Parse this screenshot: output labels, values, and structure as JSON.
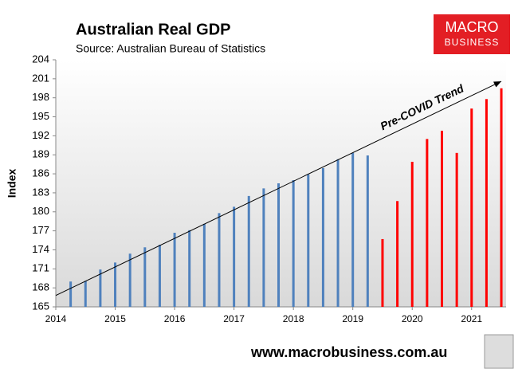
{
  "chart_data": {
    "type": "bar",
    "title": "Australian Real GDP",
    "subtitle": "Source: Australian Bureau of Statistics",
    "y_label": "Index",
    "x": [
      2014.25,
      2014.5,
      2014.75,
      2015,
      2015.25,
      2015.5,
      2015.75,
      2016,
      2016.25,
      2016.5,
      2016.75,
      2017,
      2017.25,
      2017.5,
      2017.75,
      2018,
      2018.25,
      2018.5,
      2018.75,
      2019,
      2019.25,
      2019.5,
      2019.75,
      2020,
      2020.25,
      2020.5,
      2020.75,
      2021,
      2021.25,
      2021.5
    ],
    "values": [
      169.0,
      169.1,
      170.9,
      172.0,
      173.4,
      174.4,
      174.8,
      176.7,
      177.1,
      178.1,
      179.8,
      180.8,
      182.5,
      183.7,
      184.5,
      185.0,
      185.9,
      186.9,
      188.3,
      189.3,
      188.9,
      175.7,
      181.7,
      187.9,
      191.5,
      192.8,
      189.3,
      196.3,
      197.8,
      199.5
    ],
    "colors": [
      "#4f81bd",
      "#4f81bd",
      "#4f81bd",
      "#4f81bd",
      "#4f81bd",
      "#4f81bd",
      "#4f81bd",
      "#4f81bd",
      "#4f81bd",
      "#4f81bd",
      "#4f81bd",
      "#4f81bd",
      "#4f81bd",
      "#4f81bd",
      "#4f81bd",
      "#4f81bd",
      "#4f81bd",
      "#4f81bd",
      "#4f81bd",
      "#4f81bd",
      "#4f81bd",
      "#ff0000",
      "#ff0000",
      "#ff0000",
      "#ff0000",
      "#ff0000",
      "#ff0000",
      "#ff0000",
      "#ff0000",
      "#ff0000"
    ],
    "xlim": [
      2014,
      2021.58
    ],
    "xticks": [
      2014,
      2015,
      2016,
      2017,
      2018,
      2019,
      2020,
      2021
    ],
    "ylim": [
      165,
      204
    ],
    "yticks": [
      165,
      168,
      171,
      174,
      177,
      180,
      183,
      186,
      189,
      192,
      195,
      198,
      201,
      204
    ],
    "trend": {
      "label": "Pre-COVID Trend",
      "x": [
        2014,
        2021.5
      ],
      "values": [
        166.8,
        200.6
      ]
    }
  },
  "logo": {
    "line1": "MACRO",
    "line2": "BUSINESS"
  },
  "footer": "www.macrobusiness.com.au"
}
